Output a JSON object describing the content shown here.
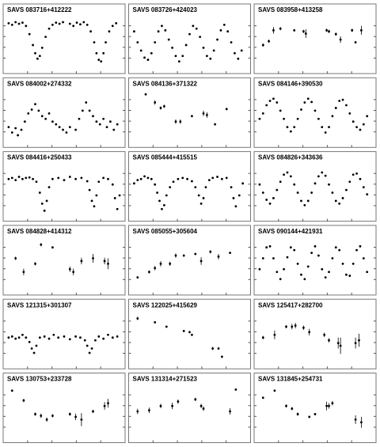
{
  "chart_data": [
    {
      "type": "scatter",
      "title": "SAVS 083716+412222",
      "xlim": [
        0,
        1
      ],
      "ylim": [
        0,
        1
      ],
      "x": [
        0.02,
        0.05,
        0.08,
        0.11,
        0.14,
        0.17,
        0.2,
        0.23,
        0.25,
        0.27,
        0.29,
        0.31,
        0.34,
        0.37,
        0.4,
        0.43,
        0.46,
        0.49,
        0.55,
        0.58,
        0.61,
        0.64,
        0.67,
        0.7,
        0.73,
        0.76,
        0.78,
        0.8,
        0.82,
        0.84,
        0.86,
        0.89,
        0.92,
        0.95
      ],
      "values": [
        0.85,
        0.82,
        0.87,
        0.84,
        0.86,
        0.8,
        0.65,
        0.45,
        0.3,
        0.2,
        0.25,
        0.4,
        0.6,
        0.75,
        0.82,
        0.86,
        0.84,
        0.87,
        0.84,
        0.8,
        0.86,
        0.83,
        0.87,
        0.82,
        0.7,
        0.5,
        0.3,
        0.18,
        0.15,
        0.3,
        0.5,
        0.7,
        0.8,
        0.85
      ]
    },
    {
      "type": "scatter",
      "title": "SAVS 083726+424023",
      "xlim": [
        0,
        1
      ],
      "ylim": [
        0,
        1
      ],
      "x": [
        0.02,
        0.05,
        0.08,
        0.11,
        0.14,
        0.17,
        0.2,
        0.23,
        0.26,
        0.29,
        0.32,
        0.35,
        0.38,
        0.41,
        0.44,
        0.47,
        0.5,
        0.53,
        0.56,
        0.59,
        0.62,
        0.65,
        0.68,
        0.71,
        0.74,
        0.77,
        0.8,
        0.83,
        0.86,
        0.89,
        0.92,
        0.95
      ],
      "values": [
        0.7,
        0.5,
        0.35,
        0.22,
        0.18,
        0.3,
        0.5,
        0.7,
        0.8,
        0.72,
        0.55,
        0.4,
        0.25,
        0.15,
        0.25,
        0.45,
        0.65,
        0.8,
        0.75,
        0.6,
        0.4,
        0.25,
        0.2,
        0.35,
        0.55,
        0.72,
        0.82,
        0.7,
        0.5,
        0.3,
        0.2,
        0.35
      ]
    },
    {
      "type": "scatter",
      "title": "SAVS 083958+413258",
      "xlim": [
        0,
        1
      ],
      "ylim": [
        0,
        1
      ],
      "x": [
        0.05,
        0.1,
        0.14,
        0.2,
        0.32,
        0.4,
        0.42,
        0.6,
        0.62,
        0.68,
        0.72,
        0.82,
        0.85,
        0.9
      ],
      "values": [
        0.45,
        0.52,
        0.72,
        0.75,
        0.72,
        0.7,
        0.66,
        0.72,
        0.7,
        0.65,
        0.55,
        0.72,
        0.5,
        0.72
      ],
      "errors": [
        0.03,
        0.03,
        0.06,
        0.03,
        0.02,
        0.03,
        0.08,
        0.03,
        0.03,
        0.03,
        0.06,
        0.03,
        0.02,
        0.08
      ]
    },
    {
      "type": "scatter",
      "title": "SAVS 084002+274332",
      "xlim": [
        0,
        1
      ],
      "ylim": [
        0,
        1
      ],
      "x": [
        0.02,
        0.05,
        0.08,
        0.1,
        0.13,
        0.16,
        0.19,
        0.22,
        0.25,
        0.28,
        0.31,
        0.34,
        0.37,
        0.4,
        0.43,
        0.46,
        0.49,
        0.52,
        0.55,
        0.6,
        0.63,
        0.66,
        0.69,
        0.72,
        0.75,
        0.78,
        0.81,
        0.84,
        0.87,
        0.9,
        0.93,
        0.96
      ],
      "values": [
        0.3,
        0.2,
        0.28,
        0.15,
        0.25,
        0.4,
        0.55,
        0.62,
        0.72,
        0.6,
        0.5,
        0.45,
        0.55,
        0.4,
        0.35,
        0.3,
        0.25,
        0.2,
        0.3,
        0.25,
        0.45,
        0.6,
        0.75,
        0.6,
        0.5,
        0.4,
        0.35,
        0.45,
        0.3,
        0.4,
        0.25,
        0.35
      ]
    },
    {
      "type": "scatter",
      "title": "SAVS 084136+371322",
      "xlim": [
        0,
        1
      ],
      "ylim": [
        0,
        1
      ],
      "x": [
        0.12,
        0.2,
        0.25,
        0.28,
        0.38,
        0.42,
        0.52,
        0.62,
        0.65,
        0.72,
        0.82
      ],
      "values": [
        0.9,
        0.75,
        0.65,
        0.68,
        0.4,
        0.4,
        0.5,
        0.55,
        0.52,
        0.35,
        0.63
      ],
      "errors": [
        0.02,
        0.04,
        0.03,
        0.03,
        0.04,
        0.04,
        0.02,
        0.05,
        0.05,
        0.02,
        0.02
      ]
    },
    {
      "type": "scatter",
      "title": "SAVS 084146+390530",
      "xlim": [
        0,
        1
      ],
      "ylim": [
        0,
        1
      ],
      "x": [
        0.02,
        0.05,
        0.08,
        0.11,
        0.14,
        0.17,
        0.2,
        0.23,
        0.26,
        0.29,
        0.32,
        0.35,
        0.38,
        0.41,
        0.44,
        0.47,
        0.5,
        0.53,
        0.56,
        0.59,
        0.62,
        0.65,
        0.68,
        0.71,
        0.74,
        0.77,
        0.8,
        0.83,
        0.86,
        0.89,
        0.92,
        0.95
      ],
      "values": [
        0.45,
        0.55,
        0.7,
        0.78,
        0.82,
        0.75,
        0.6,
        0.45,
        0.3,
        0.22,
        0.3,
        0.45,
        0.62,
        0.75,
        0.82,
        0.76,
        0.6,
        0.45,
        0.3,
        0.2,
        0.3,
        0.5,
        0.65,
        0.78,
        0.8,
        0.7,
        0.55,
        0.4,
        0.3,
        0.25,
        0.35,
        0.5
      ]
    },
    {
      "type": "scatter",
      "title": "SAVS 084416+250433",
      "xlim": [
        0,
        1
      ],
      "ylim": [
        0,
        1
      ],
      "x": [
        0.02,
        0.05,
        0.08,
        0.11,
        0.14,
        0.17,
        0.2,
        0.23,
        0.26,
        0.29,
        0.31,
        0.33,
        0.35,
        0.37,
        0.4,
        0.45,
        0.5,
        0.55,
        0.6,
        0.65,
        0.7,
        0.72,
        0.74,
        0.76,
        0.78,
        0.8,
        0.84,
        0.88,
        0.92,
        0.94,
        0.96,
        0.98
      ],
      "values": [
        0.7,
        0.72,
        0.68,
        0.74,
        0.7,
        0.72,
        0.73,
        0.7,
        0.65,
        0.45,
        0.25,
        0.12,
        0.3,
        0.55,
        0.7,
        0.72,
        0.68,
        0.74,
        0.7,
        0.72,
        0.66,
        0.5,
        0.3,
        0.2,
        0.4,
        0.65,
        0.72,
        0.7,
        0.6,
        0.35,
        0.15,
        0.4
      ]
    },
    {
      "type": "scatter",
      "title": "SAVS 085444+415515",
      "xlim": [
        0,
        1
      ],
      "ylim": [
        0,
        1
      ],
      "x": [
        0.02,
        0.05,
        0.08,
        0.11,
        0.14,
        0.17,
        0.2,
        0.22,
        0.24,
        0.26,
        0.28,
        0.3,
        0.33,
        0.36,
        0.4,
        0.44,
        0.48,
        0.52,
        0.55,
        0.58,
        0.6,
        0.62,
        0.64,
        0.67,
        0.7,
        0.74,
        0.78,
        0.82,
        0.86,
        0.88,
        0.9,
        0.93,
        0.96
      ],
      "values": [
        0.62,
        0.68,
        0.7,
        0.75,
        0.72,
        0.7,
        0.6,
        0.45,
        0.3,
        0.15,
        0.22,
        0.4,
        0.55,
        0.65,
        0.7,
        0.72,
        0.7,
        0.66,
        0.55,
        0.4,
        0.25,
        0.35,
        0.55,
        0.68,
        0.72,
        0.74,
        0.7,
        0.72,
        0.55,
        0.35,
        0.2,
        0.4,
        0.62
      ]
    },
    {
      "type": "scatter",
      "title": "SAVS 084826+343636",
      "xlim": [
        0,
        1
      ],
      "ylim": [
        0,
        1
      ],
      "x": [
        0.02,
        0.05,
        0.08,
        0.11,
        0.14,
        0.17,
        0.2,
        0.23,
        0.26,
        0.29,
        0.32,
        0.35,
        0.38,
        0.41,
        0.44,
        0.47,
        0.5,
        0.53,
        0.56,
        0.59,
        0.62,
        0.65,
        0.68,
        0.71,
        0.74,
        0.77,
        0.8,
        0.83,
        0.86,
        0.89,
        0.92,
        0.95
      ],
      "values": [
        0.6,
        0.45,
        0.32,
        0.25,
        0.35,
        0.5,
        0.65,
        0.78,
        0.82,
        0.75,
        0.6,
        0.45,
        0.3,
        0.22,
        0.3,
        0.45,
        0.62,
        0.75,
        0.82,
        0.76,
        0.6,
        0.45,
        0.3,
        0.25,
        0.35,
        0.5,
        0.65,
        0.78,
        0.8,
        0.7,
        0.55,
        0.42
      ]
    },
    {
      "type": "scatter",
      "title": "SAVS 084828+414312",
      "xlim": [
        0,
        1
      ],
      "ylim": [
        0,
        1
      ],
      "x": [
        0.08,
        0.15,
        0.25,
        0.3,
        0.4,
        0.55,
        0.58,
        0.65,
        0.75,
        0.85,
        0.88
      ],
      "values": [
        0.6,
        0.35,
        0.5,
        0.85,
        0.8,
        0.4,
        0.35,
        0.55,
        0.6,
        0.55,
        0.5
      ],
      "errors": [
        0.03,
        0.06,
        0.03,
        0.03,
        0.02,
        0.05,
        0.06,
        0.06,
        0.08,
        0.06,
        0.1
      ]
    },
    {
      "type": "scatter",
      "title": "SAVS 085055+305604",
      "xlim": [
        0,
        1
      ],
      "ylim": [
        0,
        1
      ],
      "x": [
        0.05,
        0.15,
        0.2,
        0.25,
        0.33,
        0.38,
        0.45,
        0.55,
        0.6,
        0.68,
        0.75,
        0.85
      ],
      "values": [
        0.25,
        0.35,
        0.42,
        0.5,
        0.5,
        0.65,
        0.65,
        0.68,
        0.55,
        0.72,
        0.63,
        0.7
      ],
      "errors": [
        0.02,
        0.03,
        0.04,
        0.05,
        0.04,
        0.04,
        0.02,
        0.02,
        0.07,
        0.03,
        0.05,
        0.02
      ]
    },
    {
      "type": "scatter",
      "title": "SAVS 090144+421931",
      "xlim": [
        0,
        1
      ],
      "ylim": [
        0,
        1
      ],
      "x": [
        0.02,
        0.05,
        0.08,
        0.11,
        0.14,
        0.17,
        0.2,
        0.23,
        0.26,
        0.29,
        0.32,
        0.35,
        0.38,
        0.41,
        0.44,
        0.47,
        0.5,
        0.53,
        0.56,
        0.59,
        0.62,
        0.65,
        0.68,
        0.71,
        0.74,
        0.77,
        0.8,
        0.83,
        0.86,
        0.89,
        0.92,
        0.95
      ],
      "values": [
        0.4,
        0.6,
        0.8,
        0.82,
        0.6,
        0.35,
        0.22,
        0.4,
        0.62,
        0.8,
        0.75,
        0.5,
        0.3,
        0.22,
        0.45,
        0.7,
        0.82,
        0.65,
        0.4,
        0.25,
        0.35,
        0.6,
        0.8,
        0.75,
        0.5,
        0.3,
        0.28,
        0.5,
        0.75,
        0.82,
        0.6,
        0.35
      ]
    },
    {
      "type": "scatter",
      "title": "SAVS 121315+301307",
      "xlim": [
        0,
        1
      ],
      "ylim": [
        0,
        1
      ],
      "x": [
        0.02,
        0.05,
        0.08,
        0.11,
        0.14,
        0.17,
        0.2,
        0.22,
        0.24,
        0.26,
        0.29,
        0.33,
        0.37,
        0.41,
        0.45,
        0.5,
        0.55,
        0.6,
        0.64,
        0.68,
        0.7,
        0.72,
        0.74,
        0.77,
        0.8,
        0.84,
        0.88,
        0.92,
        0.96
      ],
      "values": [
        0.5,
        0.52,
        0.48,
        0.5,
        0.55,
        0.5,
        0.42,
        0.3,
        0.22,
        0.35,
        0.5,
        0.52,
        0.48,
        0.55,
        0.5,
        0.52,
        0.47,
        0.52,
        0.5,
        0.45,
        0.35,
        0.22,
        0.3,
        0.45,
        0.52,
        0.48,
        0.55,
        0.5,
        0.52
      ]
    },
    {
      "type": "scatter",
      "title": "SAVS 122025+415629",
      "xlim": [
        0,
        1
      ],
      "ylim": [
        0,
        1
      ],
      "x": [
        0.05,
        0.2,
        0.3,
        0.45,
        0.5,
        0.52,
        0.7,
        0.75,
        0.78
      ],
      "values": [
        0.85,
        0.78,
        0.7,
        0.62,
        0.6,
        0.55,
        0.3,
        0.3,
        0.15
      ],
      "errors": [
        0.03,
        0.02,
        0.02,
        0.02,
        0.02,
        0.02,
        0.03,
        0.02,
        0.02
      ]
    },
    {
      "type": "scatter",
      "title": "SAVS 125417+282700",
      "xlim": [
        0,
        1
      ],
      "ylim": [
        0,
        1
      ],
      "x": [
        0.05,
        0.15,
        0.25,
        0.3,
        0.33,
        0.4,
        0.45,
        0.58,
        0.62,
        0.7,
        0.72,
        0.85,
        0.88
      ],
      "values": [
        0.5,
        0.55,
        0.7,
        0.7,
        0.72,
        0.68,
        0.6,
        0.55,
        0.45,
        0.4,
        0.35,
        0.4,
        0.45
      ],
      "errors": [
        0.03,
        0.08,
        0.03,
        0.05,
        0.05,
        0.04,
        0.06,
        0.04,
        0.04,
        0.1,
        0.15,
        0.1,
        0.12
      ]
    },
    {
      "type": "scatter",
      "title": "SAVS 130753+233728",
      "xlim": [
        0,
        1
      ],
      "ylim": [
        0,
        1
      ],
      "x": [
        0.05,
        0.15,
        0.25,
        0.3,
        0.35,
        0.4,
        0.55,
        0.6,
        0.65,
        0.75,
        0.85,
        0.88
      ],
      "values": [
        0.88,
        0.7,
        0.45,
        0.42,
        0.35,
        0.42,
        0.45,
        0.4,
        0.35,
        0.5,
        0.6,
        0.65
      ],
      "errors": [
        0.02,
        0.03,
        0.03,
        0.04,
        0.04,
        0.03,
        0.03,
        0.06,
        0.12,
        0.03,
        0.07,
        0.08
      ]
    },
    {
      "type": "scatter",
      "title": "SAVS 131314+271523",
      "xlim": [
        0,
        1
      ],
      "ylim": [
        0,
        1
      ],
      "x": [
        0.05,
        0.15,
        0.25,
        0.35,
        0.4,
        0.55,
        0.6,
        0.62,
        0.85,
        0.9
      ],
      "values": [
        0.5,
        0.52,
        0.6,
        0.6,
        0.68,
        0.72,
        0.6,
        0.55,
        0.5,
        0.9
      ],
      "errors": [
        0.05,
        0.05,
        0.04,
        0.06,
        0.04,
        0.03,
        0.04,
        0.04,
        0.06,
        0.02
      ]
    },
    {
      "type": "scatter",
      "title": "SAVS 131845+254731",
      "xlim": [
        0,
        1
      ],
      "ylim": [
        0,
        1
      ],
      "x": [
        0.05,
        0.15,
        0.25,
        0.3,
        0.35,
        0.45,
        0.5,
        0.6,
        0.62,
        0.65,
        0.85,
        0.9
      ],
      "values": [
        0.75,
        0.88,
        0.6,
        0.55,
        0.45,
        0.4,
        0.45,
        0.6,
        0.6,
        0.65,
        0.35,
        0.3
      ],
      "errors": [
        0.02,
        0.02,
        0.03,
        0.03,
        0.03,
        0.02,
        0.02,
        0.08,
        0.05,
        0.04,
        0.08,
        0.1
      ]
    }
  ]
}
